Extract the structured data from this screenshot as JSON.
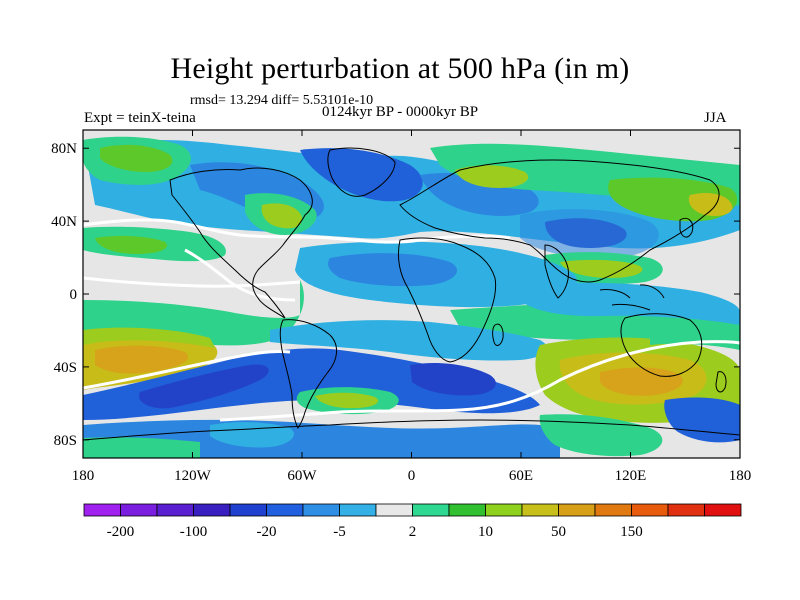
{
  "title": "Height perturbation at 500 hPa (in m)",
  "stats": "rmsd= 13.294 diff= 5.53101e-10",
  "experiment": "Expt = teinX-teina",
  "period": "0124kyr BP - 0000kyr BP",
  "season": "JJA",
  "map": {
    "y_ticks": [
      {
        "label": "80N",
        "lat": 80
      },
      {
        "label": "40N",
        "lat": 40
      },
      {
        "label": "0",
        "lat": 0
      },
      {
        "label": "40S",
        "lat": -40
      },
      {
        "label": "80S",
        "lat": -80
      }
    ],
    "x_ticks": [
      {
        "label": "180",
        "lon": -180
      },
      {
        "label": "120W",
        "lon": -120
      },
      {
        "label": "60W",
        "lon": -60
      },
      {
        "label": "0",
        "lon": 0
      },
      {
        "label": "60E",
        "lon": 60
      },
      {
        "label": "120E",
        "lon": 120
      },
      {
        "label": "180",
        "lon": 180
      }
    ]
  },
  "colorbar": {
    "colors": [
      "#a020f0",
      "#7a1fe0",
      "#5a1fd0",
      "#3a1fc0",
      "#2040d0",
      "#2060e0",
      "#2f8fe5",
      "#33b0e5",
      "#e8e8e8",
      "#2fd890",
      "#30c030",
      "#8ed21d",
      "#c8c01a",
      "#d8a018",
      "#e07a10",
      "#e85a0c",
      "#e03010",
      "#e01010"
    ],
    "labels": [
      {
        "text": "-200",
        "boundary": 1
      },
      {
        "text": "-100",
        "boundary": 3
      },
      {
        "text": "-20",
        "boundary": 5
      },
      {
        "text": "-5",
        "boundary": 7
      },
      {
        "text": "2",
        "boundary": 9
      },
      {
        "text": "10",
        "boundary": 11
      },
      {
        "text": "50",
        "boundary": 13
      },
      {
        "text": "150",
        "boundary": 15
      }
    ]
  },
  "palette": {
    "neutral": "#e6e6e6",
    "cyan": "#30b0e2",
    "light_blue": "#2c86e0",
    "blue": "#2060d8",
    "deep_blue": "#2243c8",
    "green": "#2fd28a",
    "lime": "#5cc82a",
    "yellow_green": "#9ccc1e",
    "olive": "#c8bd18",
    "orange": "#d6a31a",
    "zero_line": "#ffffff",
    "coast": "#000000"
  }
}
